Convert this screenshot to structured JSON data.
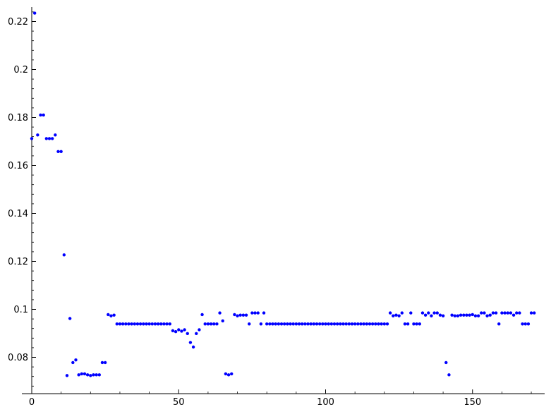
{
  "chart_data": {
    "type": "scatter",
    "title": "",
    "xlabel": "",
    "ylabel": "",
    "xlim": [
      -3,
      175
    ],
    "ylim": [
      0.0655,
      0.2265
    ],
    "grid": false,
    "marker_color": "#0000ff",
    "x_ticks": [
      0,
      50,
      100,
      150
    ],
    "x_tick_labels": [
      "0",
      "50",
      "100",
      "150"
    ],
    "y_ticks": [
      0.08,
      0.1,
      0.12,
      0.14,
      0.16,
      0.18,
      0.2,
      0.22
    ],
    "y_tick_labels": [
      "0.08",
      "0.1",
      "0.12",
      "0.14",
      "0.16",
      "0.18",
      "0.2",
      "0.22"
    ],
    "x": [
      0,
      1,
      2,
      3,
      4,
      5,
      6,
      7,
      8,
      9,
      10,
      11,
      12,
      13,
      14,
      15,
      16,
      17,
      18,
      19,
      20,
      21,
      22,
      23,
      24,
      25,
      26,
      27,
      28,
      29,
      30,
      31,
      32,
      33,
      34,
      35,
      36,
      37,
      38,
      39,
      40,
      41,
      42,
      43,
      44,
      45,
      46,
      47,
      48,
      49,
      50,
      51,
      52,
      53,
      54,
      55,
      56,
      57,
      58,
      59,
      60,
      61,
      62,
      63,
      64,
      65,
      66,
      67,
      68,
      69,
      70,
      71,
      72,
      73,
      74,
      75,
      76,
      77,
      78,
      79,
      80,
      81,
      82,
      83,
      84,
      85,
      86,
      87,
      88,
      89,
      90,
      91,
      92,
      93,
      94,
      95,
      96,
      97,
      98,
      99,
      100,
      101,
      102,
      103,
      104,
      105,
      106,
      107,
      108,
      109,
      110,
      111,
      112,
      113,
      114,
      115,
      116,
      117,
      118,
      119,
      120,
      121,
      122,
      123,
      124,
      125,
      126,
      127,
      128,
      129,
      130,
      131,
      132,
      133,
      134,
      135,
      136,
      137,
      138,
      139,
      140,
      141,
      142,
      143,
      144,
      145,
      146,
      147,
      148,
      149,
      150,
      151,
      152,
      153,
      154,
      155,
      156,
      157,
      158,
      159,
      160,
      161,
      162,
      163,
      164,
      165,
      166,
      167,
      168,
      169,
      170,
      171
    ],
    "y": [
      0.1712,
      0.2235,
      0.1727,
      0.181,
      0.181,
      0.1712,
      0.1712,
      0.1712,
      0.1727,
      0.1658,
      0.1658,
      0.1227,
      0.0724,
      0.0962,
      0.0778,
      0.0789,
      0.0727,
      0.0731,
      0.0731,
      0.0727,
      0.0724,
      0.0727,
      0.0727,
      0.0727,
      0.0778,
      0.0778,
      0.0978,
      0.0973,
      0.0976,
      0.0939,
      0.0939,
      0.0939,
      0.0939,
      0.0939,
      0.0939,
      0.0939,
      0.0939,
      0.0939,
      0.0939,
      0.0939,
      0.0939,
      0.0939,
      0.0939,
      0.0939,
      0.0939,
      0.0939,
      0.0939,
      0.0939,
      0.0911,
      0.0907,
      0.0915,
      0.0909,
      0.0915,
      0.0899,
      0.0862,
      0.0843,
      0.0899,
      0.0915,
      0.0978,
      0.0939,
      0.0939,
      0.0939,
      0.0939,
      0.0939,
      0.0985,
      0.0952,
      0.0731,
      0.0727,
      0.0731,
      0.0978,
      0.0973,
      0.0976,
      0.0976,
      0.0976,
      0.0939,
      0.0985,
      0.0985,
      0.0985,
      0.0939,
      0.0985,
      0.0939,
      0.0939,
      0.0939,
      0.0939,
      0.0939,
      0.0939,
      0.0939,
      0.0939,
      0.0939,
      0.0939,
      0.0939,
      0.0939,
      0.0939,
      0.0939,
      0.0939,
      0.0939,
      0.0939,
      0.0939,
      0.0939,
      0.0939,
      0.0939,
      0.0939,
      0.0939,
      0.0939,
      0.0939,
      0.0939,
      0.0939,
      0.0939,
      0.0939,
      0.0939,
      0.0939,
      0.0939,
      0.0939,
      0.0939,
      0.0939,
      0.0939,
      0.0939,
      0.0939,
      0.0939,
      0.0939,
      0.0939,
      0.0939,
      0.0985,
      0.0973,
      0.0976,
      0.0973,
      0.0985,
      0.0939,
      0.0939,
      0.0985,
      0.0939,
      0.0939,
      0.0939,
      0.0985,
      0.0976,
      0.0985,
      0.0973,
      0.0985,
      0.0985,
      0.0976,
      0.0973,
      0.0778,
      0.0727,
      0.0976,
      0.0973,
      0.0973,
      0.0976,
      0.0976,
      0.0976,
      0.0976,
      0.0978,
      0.0973,
      0.0973,
      0.0985,
      0.0985,
      0.0973,
      0.0976,
      0.0985,
      0.0985,
      0.0939,
      0.0985,
      0.0985,
      0.0985,
      0.0985,
      0.0976,
      0.0985,
      0.0985,
      0.0939,
      0.0939,
      0.0939,
      0.0985,
      0.0985
    ]
  }
}
